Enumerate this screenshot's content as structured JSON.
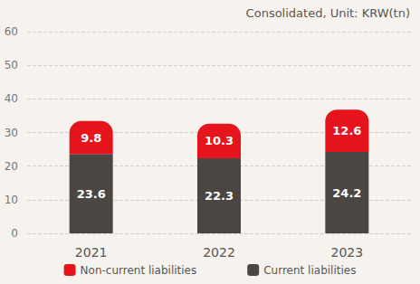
{
  "chart_data": {
    "type": "bar",
    "subtitle": "Consolidated, Unit: KRW(tn)",
    "categories": [
      "2021",
      "2022",
      "2023"
    ],
    "series": [
      {
        "name": "Non-current liabilities",
        "color": "#e5141d",
        "values": [
          9.8,
          10.3,
          12.6
        ]
      },
      {
        "name": "Current liabilities",
        "color": "#4b4642",
        "values": [
          23.6,
          22.3,
          24.2
        ]
      }
    ],
    "stacked": true,
    "data_labels": true,
    "ylim": [
      0,
      60
    ],
    "yticks": [
      0,
      10,
      20,
      30,
      40,
      50,
      60
    ],
    "grid": true,
    "legend": "bottom"
  }
}
